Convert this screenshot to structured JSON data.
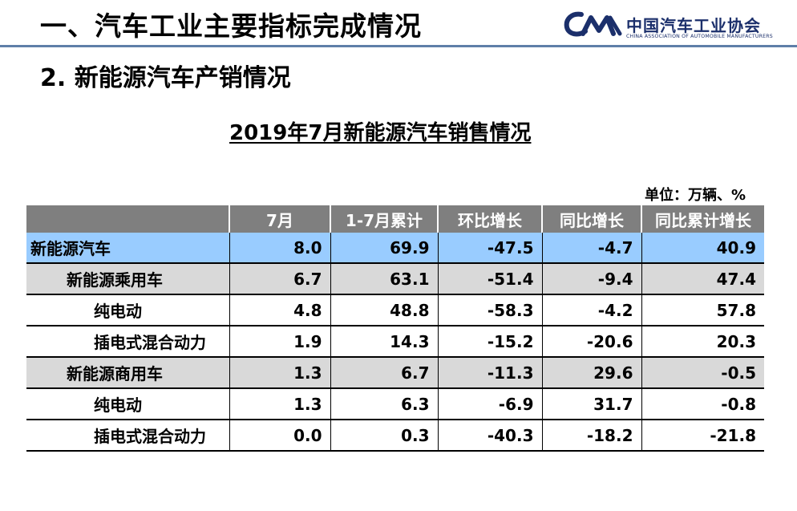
{
  "header": {
    "title": "一、汽车工业主要指标完成情况",
    "logo_cn": "中国汽车工业协会",
    "logo_en": "CHINA ASSOCIATION OF AUTOMOBILE MANUFACTURERS"
  },
  "section_title": "2. 新能源汽车产销情况",
  "table_title": "2019年7月新能源汽车销售情况",
  "unit": "单位：万辆、%",
  "table": {
    "columns": [
      "",
      "7月",
      "1-7月累计",
      "环比增长",
      "同比增长",
      "同比累计增长"
    ],
    "rows": [
      {
        "level": 0,
        "name": "新能源汽车",
        "values": [
          "8.0",
          "69.9",
          "-47.5",
          "-4.7",
          "40.9"
        ]
      },
      {
        "level": 1,
        "name": "新能源乘用车",
        "values": [
          "6.7",
          "63.1",
          "-51.4",
          "-9.4",
          "47.4"
        ]
      },
      {
        "level": 2,
        "name": "纯电动",
        "values": [
          "4.8",
          "48.8",
          "-58.3",
          "-4.2",
          "57.8"
        ]
      },
      {
        "level": 2,
        "name": "插电式混合动力",
        "values": [
          "1.9",
          "14.3",
          "-15.2",
          "-20.6",
          "20.3"
        ]
      },
      {
        "level": 1,
        "name": "新能源商用车",
        "values": [
          "1.3",
          "6.7",
          "-11.3",
          "29.6",
          "-0.5"
        ]
      },
      {
        "level": 2,
        "name": "纯电动",
        "values": [
          "1.3",
          "6.3",
          "-6.9",
          "31.7",
          "-0.8"
        ]
      },
      {
        "level": 2,
        "name": "插电式混合动力",
        "values": [
          "0.0",
          "0.3",
          "-40.3",
          "-18.2",
          "-21.8"
        ]
      }
    ]
  },
  "colors": {
    "header_rule": "#5f7fa8",
    "table_header_bg": "#7f7f7f",
    "total_row_bg": "#99ccff",
    "subtotal_row_bg": "#d9d9d9",
    "logo_blue": "#1b2f6b"
  },
  "icons": {
    "logo_mark": "caam-logo-icon"
  }
}
